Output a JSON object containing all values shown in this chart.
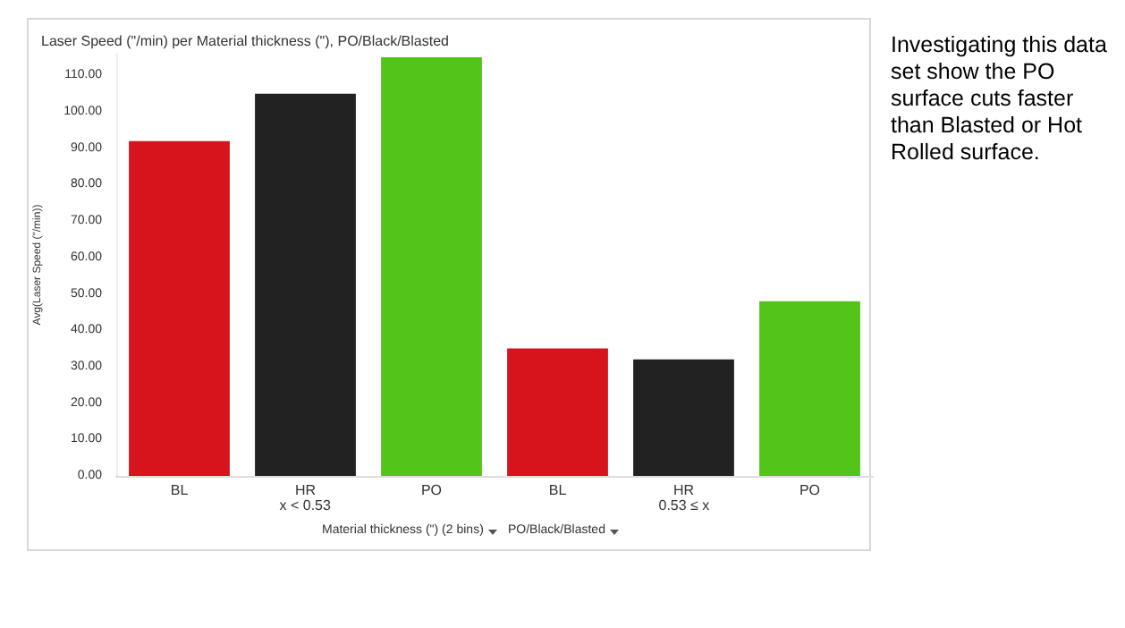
{
  "chart_data": {
    "type": "bar",
    "title": "Laser Speed (\"/min) per Material thickness (\"), PO/Black/Blasted",
    "ylabel": "Avg(Laser Speed (\"/min))",
    "categories": [
      "BL",
      "HR",
      "PO",
      "BL",
      "HR",
      "PO"
    ],
    "values": [
      92,
      105,
      115,
      35,
      32,
      48
    ],
    "colors": [
      "#d7141c",
      "#222222",
      "#52c41a",
      "#d7141c",
      "#222222",
      "#52c41a"
    ],
    "ylim": [
      0,
      116
    ],
    "yticks": [
      {
        "value": 0,
        "label": "0.00"
      },
      {
        "value": 10,
        "label": "10.00"
      },
      {
        "value": 20,
        "label": "20.00"
      },
      {
        "value": 30,
        "label": "30.00"
      },
      {
        "value": 40,
        "label": "40.00"
      },
      {
        "value": 50,
        "label": "50.00"
      },
      {
        "value": 60,
        "label": "60.00"
      },
      {
        "value": 70,
        "label": "70.00"
      },
      {
        "value": 80,
        "label": "80.00"
      },
      {
        "value": 90,
        "label": "90.00"
      },
      {
        "value": 100,
        "label": "100.00"
      },
      {
        "value": 110,
        "label": "110.00"
      }
    ],
    "annotations": [
      "x < 0.53",
      "0.53 ≤ x",
      "Material thickness (\") (2 bins)",
      "PO/Black/Blasted",
      "Investigating this data set show the PO surface cuts faster than Blasted or Hot Rolled surface."
    ],
    "grid": false
  }
}
